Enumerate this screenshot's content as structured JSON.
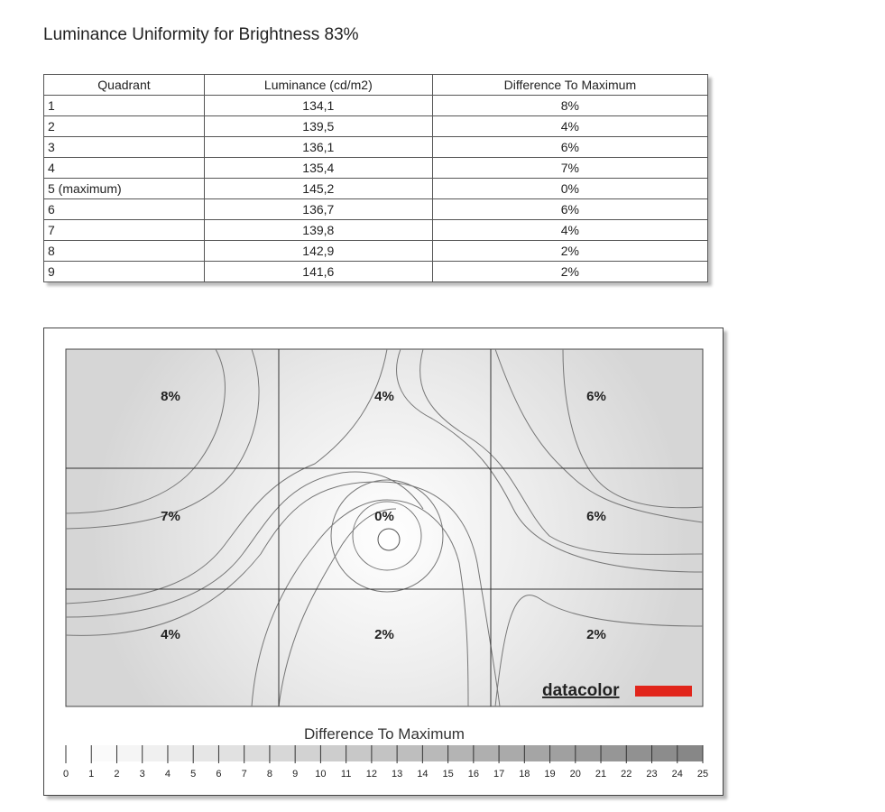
{
  "title": "Luminance Uniformity for Brightness 83%",
  "table": {
    "header": [
      "Quadrant",
      "Luminance (cd/m2)",
      "Difference To Maximum"
    ],
    "rows": [
      [
        "1",
        "134,1",
        "8%"
      ],
      [
        "2",
        "139,5",
        "4%"
      ],
      [
        "3",
        "136,1",
        "6%"
      ],
      [
        "4",
        "135,4",
        "7%"
      ],
      [
        "5 (maximum)",
        "145,2",
        "0%"
      ],
      [
        "6",
        "136,7",
        "6%"
      ],
      [
        "7",
        "139,8",
        "4%"
      ],
      [
        "8",
        "142,9",
        "2%"
      ],
      [
        "9",
        "141,6",
        "2%"
      ]
    ]
  },
  "map": {
    "labels": [
      "8%",
      "4%",
      "6%",
      "7%",
      "0%",
      "6%",
      "4%",
      "2%",
      "2%"
    ],
    "brand": "datacolor",
    "scale_title": "Difference To Maximum",
    "scale_ticks": [
      0,
      1,
      2,
      3,
      4,
      5,
      6,
      7,
      8,
      9,
      10,
      11,
      12,
      13,
      14,
      15,
      16,
      17,
      18,
      19,
      20,
      21,
      22,
      23,
      24,
      25
    ]
  }
}
